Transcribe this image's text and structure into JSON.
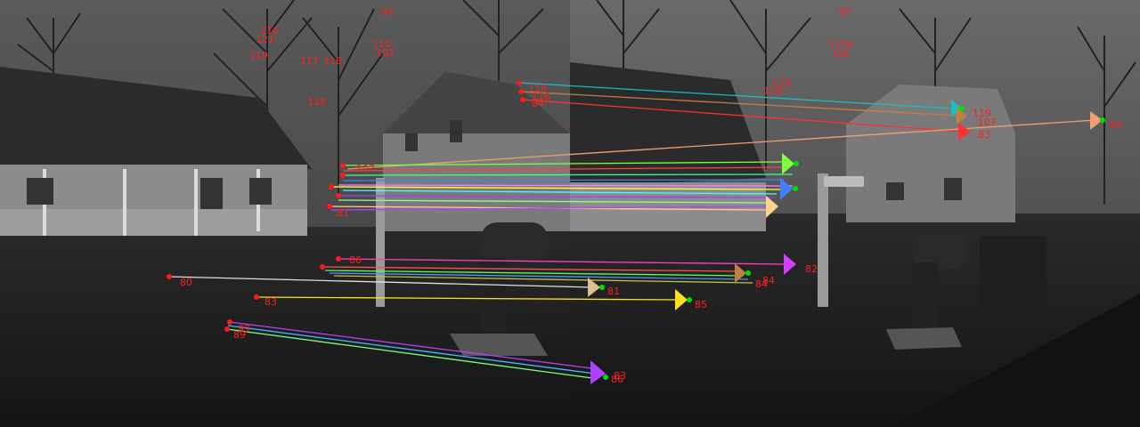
{
  "colors": {
    "sky": "#4a4a4a",
    "sky_light": "#6a6a6a",
    "ground": "#1f1f1f",
    "house_wall": "#9a9a9a",
    "roof": "#2a2a2a",
    "tree": "#1a1a1a",
    "label": "#ff2020",
    "keypoint": "#ff1a1a",
    "tip": "#00e000"
  },
  "scene": {
    "left_view": "house with porch, mailbox and bare trees (frame A)",
    "right_view": "same house from a rotated viewpoint with mailbox and trash bin (frame B)"
  },
  "labels_left": [
    "84",
    "116",
    "121",
    "119",
    "117",
    "116",
    "110",
    "102",
    "118",
    "118",
    "118",
    "107",
    "84",
    "86",
    "80",
    "81",
    "83",
    "99",
    "89"
  ],
  "labels_right": [
    "85",
    "1106",
    "102",
    "118",
    "118",
    "119",
    "107",
    "83",
    "80",
    "82",
    "81",
    "85",
    "84",
    "86",
    "83",
    "84"
  ]
}
